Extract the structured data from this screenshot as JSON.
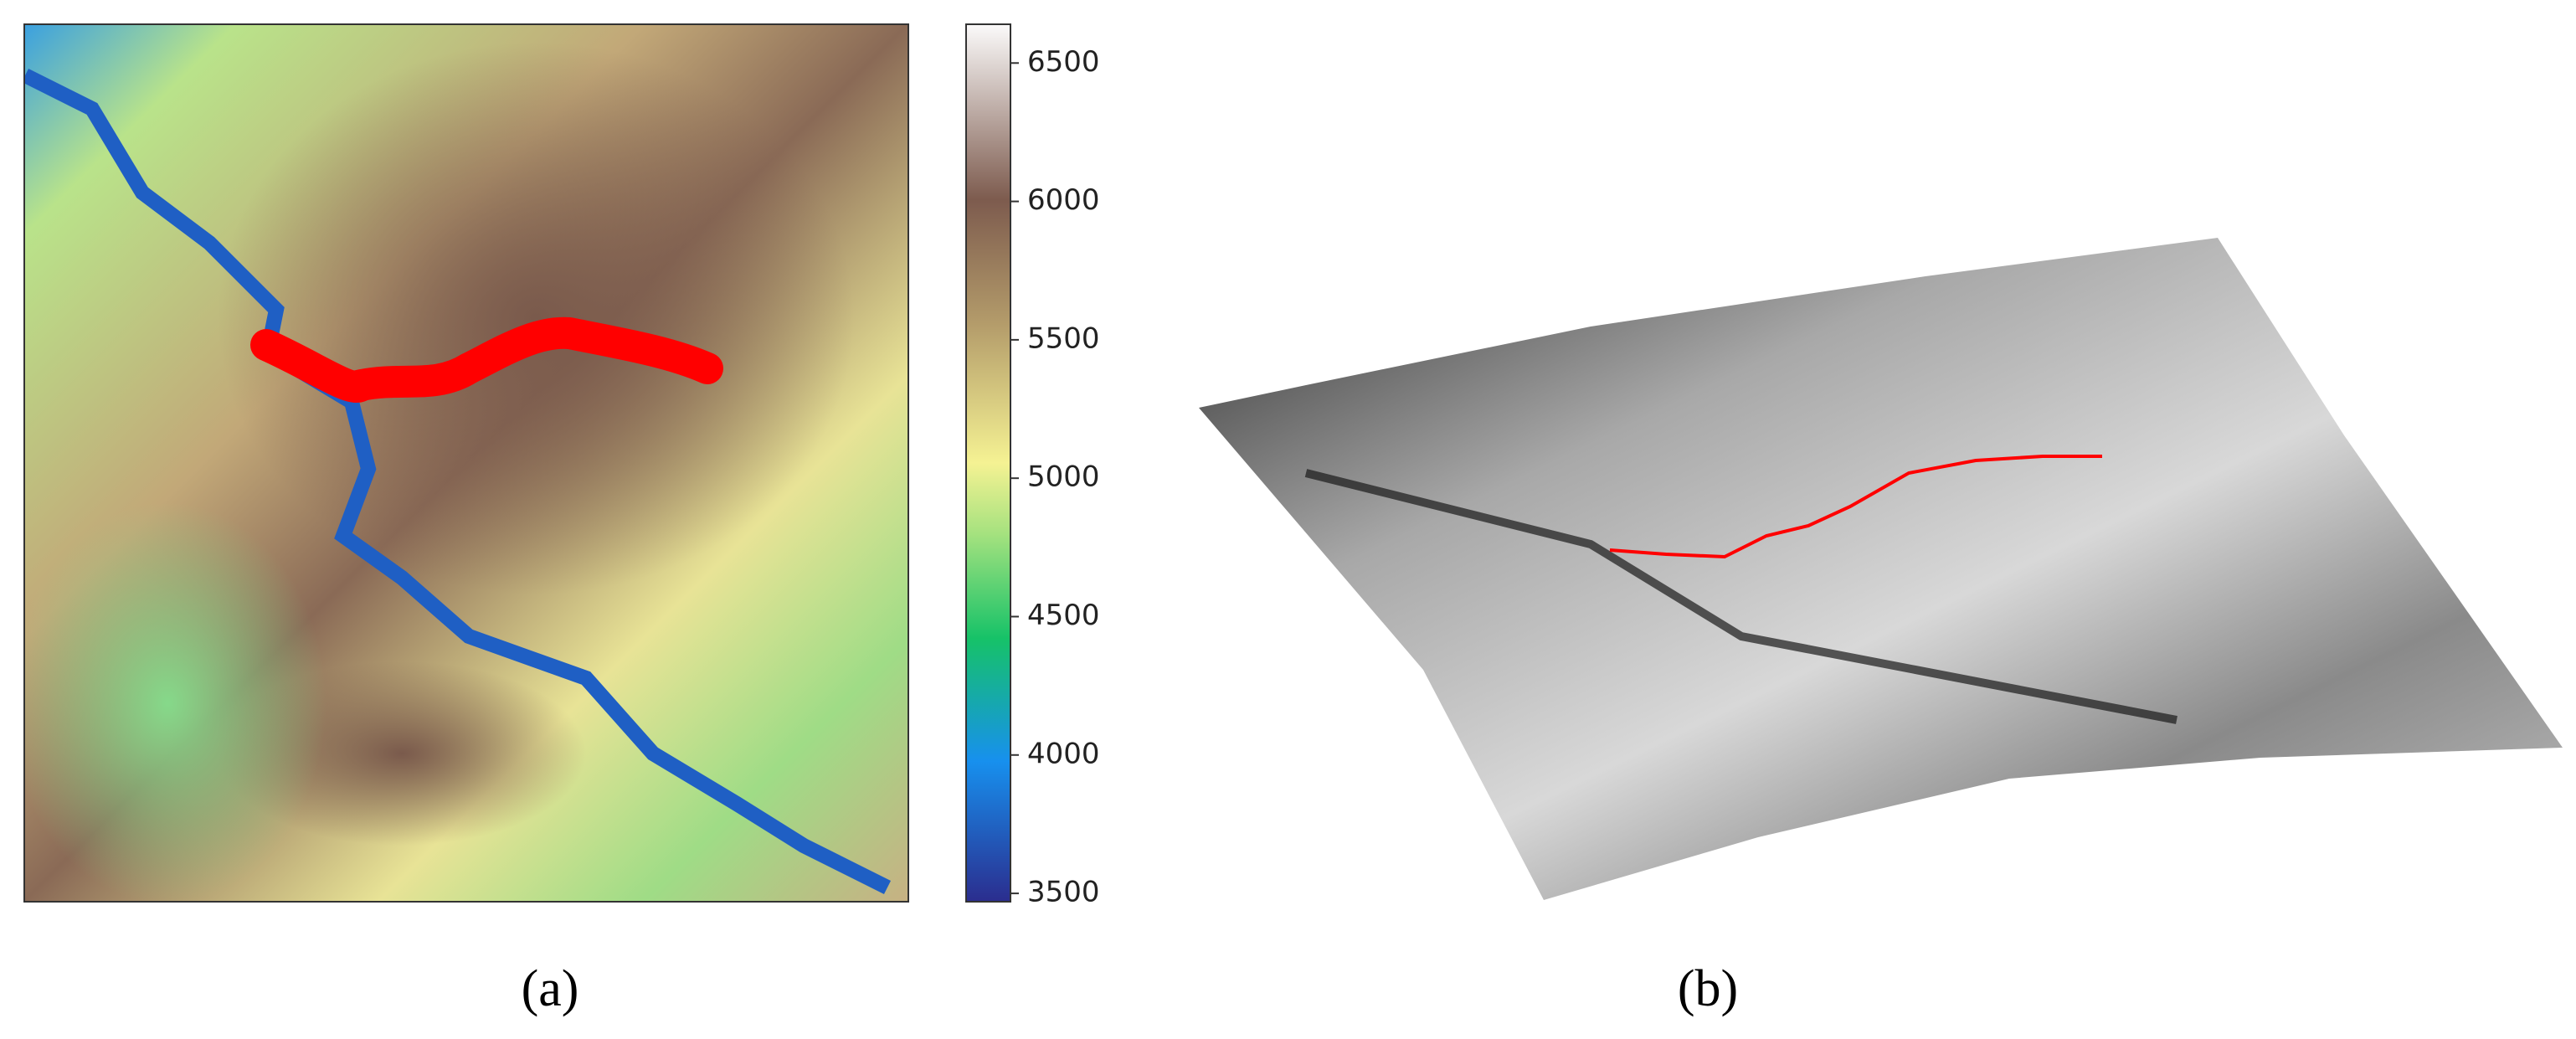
{
  "panel_a": {
    "label": "(a)",
    "colorbar": {
      "lim": [
        3470,
        6640
      ],
      "ticks": [
        3500,
        4000,
        4500,
        5000,
        5500,
        6000,
        6500
      ]
    }
  },
  "panel_b": {
    "label": "(b)"
  }
}
